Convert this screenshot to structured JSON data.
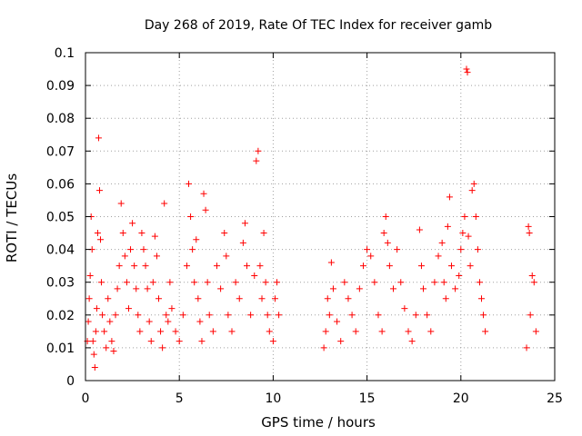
{
  "chart_data": {
    "type": "scatter",
    "title": "Day 268 of 2019, Rate Of TEC Index for receiver gamb",
    "xlabel": "GPS time / hours",
    "ylabel": "ROTI / TECUs",
    "xlim": [
      0,
      25
    ],
    "ylim": [
      0,
      0.1
    ],
    "x_ticks": [
      0,
      5,
      10,
      15,
      20,
      25
    ],
    "x_tick_labels": [
      "0",
      "5",
      "10",
      "15",
      "20",
      "25"
    ],
    "y_ticks": [
      0,
      0.01,
      0.02,
      0.03,
      0.04,
      0.05,
      0.06,
      0.07,
      0.08,
      0.09,
      0.1
    ],
    "y_tick_labels": [
      "0",
      "0.01",
      "0.02",
      "0.03",
      "0.04",
      "0.05",
      "0.06",
      "0.07",
      "0.08",
      "0.09",
      "0.1"
    ],
    "grid": true,
    "marker": "+",
    "color": "#ff0000",
    "series": [
      {
        "name": "ROTI",
        "points": [
          [
            0.1,
            0.012
          ],
          [
            0.15,
            0.018
          ],
          [
            0.2,
            0.025
          ],
          [
            0.25,
            0.032
          ],
          [
            0.3,
            0.05
          ],
          [
            0.35,
            0.04
          ],
          [
            0.4,
            0.012
          ],
          [
            0.45,
            0.008
          ],
          [
            0.5,
            0.004
          ],
          [
            0.55,
            0.015
          ],
          [
            0.6,
            0.022
          ],
          [
            0.65,
            0.045
          ],
          [
            0.7,
            0.074
          ],
          [
            0.75,
            0.058
          ],
          [
            0.8,
            0.043
          ],
          [
            0.85,
            0.03
          ],
          [
            0.9,
            0.02
          ],
          [
            1.0,
            0.015
          ],
          [
            1.1,
            0.01
          ],
          [
            1.2,
            0.025
          ],
          [
            1.3,
            0.018
          ],
          [
            1.4,
            0.012
          ],
          [
            1.5,
            0.009
          ],
          [
            1.6,
            0.02
          ],
          [
            1.7,
            0.028
          ],
          [
            1.8,
            0.035
          ],
          [
            1.9,
            0.054
          ],
          [
            2.0,
            0.045
          ],
          [
            2.1,
            0.038
          ],
          [
            2.2,
            0.03
          ],
          [
            2.3,
            0.022
          ],
          [
            2.4,
            0.04
          ],
          [
            2.5,
            0.048
          ],
          [
            2.6,
            0.035
          ],
          [
            2.7,
            0.028
          ],
          [
            2.8,
            0.02
          ],
          [
            2.9,
            0.015
          ],
          [
            3.0,
            0.045
          ],
          [
            3.1,
            0.04
          ],
          [
            3.2,
            0.035
          ],
          [
            3.3,
            0.028
          ],
          [
            3.4,
            0.018
          ],
          [
            3.5,
            0.012
          ],
          [
            3.6,
            0.03
          ],
          [
            3.7,
            0.044
          ],
          [
            3.8,
            0.038
          ],
          [
            3.9,
            0.025
          ],
          [
            4.0,
            0.015
          ],
          [
            4.1,
            0.01
          ],
          [
            4.2,
            0.054
          ],
          [
            4.3,
            0.02
          ],
          [
            4.4,
            0.018
          ],
          [
            4.5,
            0.03
          ],
          [
            4.6,
            0.022
          ],
          [
            4.8,
            0.015
          ],
          [
            5.0,
            0.012
          ],
          [
            5.2,
            0.02
          ],
          [
            5.4,
            0.035
          ],
          [
            5.5,
            0.06
          ],
          [
            5.6,
            0.05
          ],
          [
            5.7,
            0.04
          ],
          [
            5.8,
            0.03
          ],
          [
            5.9,
            0.043
          ],
          [
            6.0,
            0.025
          ],
          [
            6.1,
            0.018
          ],
          [
            6.2,
            0.012
          ],
          [
            6.3,
            0.057
          ],
          [
            6.4,
            0.052
          ],
          [
            6.5,
            0.03
          ],
          [
            6.6,
            0.02
          ],
          [
            6.8,
            0.015
          ],
          [
            7.0,
            0.035
          ],
          [
            7.2,
            0.028
          ],
          [
            7.4,
            0.045
          ],
          [
            7.5,
            0.038
          ],
          [
            7.6,
            0.02
          ],
          [
            7.8,
            0.015
          ],
          [
            8.0,
            0.03
          ],
          [
            8.2,
            0.025
          ],
          [
            8.4,
            0.042
          ],
          [
            8.5,
            0.048
          ],
          [
            8.6,
            0.035
          ],
          [
            8.8,
            0.02
          ],
          [
            9.0,
            0.032
          ],
          [
            9.1,
            0.067
          ],
          [
            9.2,
            0.07
          ],
          [
            9.3,
            0.035
          ],
          [
            9.4,
            0.025
          ],
          [
            9.5,
            0.045
          ],
          [
            9.6,
            0.03
          ],
          [
            9.7,
            0.02
          ],
          [
            9.8,
            0.015
          ],
          [
            10.0,
            0.012
          ],
          [
            10.1,
            0.025
          ],
          [
            10.2,
            0.03
          ],
          [
            10.3,
            0.02
          ],
          [
            12.7,
            0.01
          ],
          [
            12.8,
            0.015
          ],
          [
            12.9,
            0.025
          ],
          [
            13.0,
            0.02
          ],
          [
            13.1,
            0.036
          ],
          [
            13.2,
            0.028
          ],
          [
            13.4,
            0.018
          ],
          [
            13.6,
            0.012
          ],
          [
            13.8,
            0.03
          ],
          [
            14.0,
            0.025
          ],
          [
            14.2,
            0.02
          ],
          [
            14.4,
            0.015
          ],
          [
            14.6,
            0.028
          ],
          [
            14.8,
            0.035
          ],
          [
            15.0,
            0.04
          ],
          [
            15.2,
            0.038
          ],
          [
            15.4,
            0.03
          ],
          [
            15.6,
            0.02
          ],
          [
            15.8,
            0.015
          ],
          [
            15.9,
            0.045
          ],
          [
            16.0,
            0.05
          ],
          [
            16.1,
            0.042
          ],
          [
            16.2,
            0.035
          ],
          [
            16.4,
            0.028
          ],
          [
            16.6,
            0.04
          ],
          [
            16.8,
            0.03
          ],
          [
            17.0,
            0.022
          ],
          [
            17.2,
            0.015
          ],
          [
            17.4,
            0.012
          ],
          [
            17.6,
            0.02
          ],
          [
            17.8,
            0.046
          ],
          [
            17.9,
            0.035
          ],
          [
            18.0,
            0.028
          ],
          [
            18.2,
            0.02
          ],
          [
            18.4,
            0.015
          ],
          [
            18.6,
            0.03
          ],
          [
            18.8,
            0.038
          ],
          [
            19.0,
            0.042
          ],
          [
            19.1,
            0.03
          ],
          [
            19.2,
            0.025
          ],
          [
            19.3,
            0.047
          ],
          [
            19.4,
            0.056
          ],
          [
            19.5,
            0.035
          ],
          [
            19.7,
            0.028
          ],
          [
            19.9,
            0.032
          ],
          [
            20.0,
            0.04
          ],
          [
            20.1,
            0.045
          ],
          [
            20.2,
            0.05
          ],
          [
            20.3,
            0.095
          ],
          [
            20.35,
            0.094
          ],
          [
            20.4,
            0.044
          ],
          [
            20.5,
            0.035
          ],
          [
            20.6,
            0.058
          ],
          [
            20.7,
            0.06
          ],
          [
            20.8,
            0.05
          ],
          [
            20.9,
            0.04
          ],
          [
            21.0,
            0.03
          ],
          [
            21.1,
            0.025
          ],
          [
            21.2,
            0.02
          ],
          [
            21.3,
            0.015
          ],
          [
            23.5,
            0.01
          ],
          [
            23.6,
            0.047
          ],
          [
            23.65,
            0.045
          ],
          [
            23.7,
            0.02
          ],
          [
            23.8,
            0.032
          ],
          [
            23.9,
            0.03
          ],
          [
            24.0,
            0.015
          ]
        ]
      }
    ]
  }
}
